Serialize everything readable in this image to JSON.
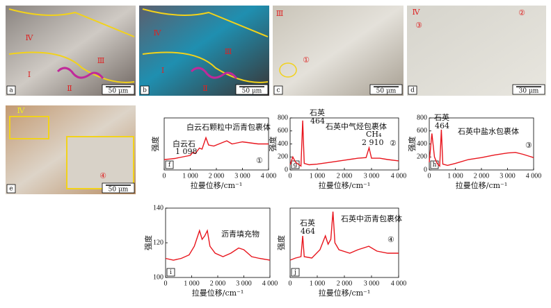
{
  "photos": [
    {
      "label": "a",
      "scale": "50 μm",
      "marks": [
        "Ⅳ",
        "Ⅲ",
        "Ⅰ",
        "Ⅱ"
      ]
    },
    {
      "label": "b",
      "scale": "50 μm",
      "marks": [
        "Ⅳ",
        "Ⅲ",
        "Ⅰ",
        "Ⅱ"
      ]
    },
    {
      "label": "c",
      "scale": "50 μm",
      "marks": [
        "Ⅲ",
        "①"
      ]
    },
    {
      "label": "d",
      "scale": "30 μm",
      "marks": [
        "Ⅳ",
        "③",
        "②"
      ]
    },
    {
      "label": "e",
      "scale": "50 μm",
      "marks": [
        "Ⅳ",
        "④"
      ]
    }
  ],
  "chart_data": [
    {
      "type": "line",
      "panel": "f",
      "xlabel": "拉曼位移/cm⁻¹",
      "ylabel": "强度",
      "color": "#e8141c",
      "xlim": [
        0,
        4000
      ],
      "xticks": [
        0,
        {
          "value": 1000,
          "label": "1 000"
        },
        {
          "value": 2000,
          "label": "2 000"
        },
        {
          "value": 3000,
          "label": "3 000"
        },
        {
          "value": 4000,
          "label": "4 000"
        }
      ],
      "ylim": [
        0,
        100
      ],
      "x": [
        0,
        200,
        400,
        600,
        800,
        1000,
        1098,
        1200,
        1350,
        1450,
        1600,
        1700,
        1900,
        2100,
        2400,
        2600,
        2800,
        3000,
        3300,
        3600,
        4000
      ],
      "values": [
        20,
        21,
        22,
        24,
        26,
        28,
        34,
        32,
        42,
        40,
        62,
        48,
        46,
        50,
        56,
        50,
        52,
        54,
        52,
        50,
        50
      ],
      "annotations": [
        "白云石颗粒中沥青包裹体",
        "白云石",
        "1 098",
        "①"
      ]
    },
    {
      "type": "line",
      "panel": "g",
      "xlabel": "拉曼位移/cm⁻¹",
      "ylabel": "强度",
      "color": "#e8141c",
      "xlim": [
        0,
        4000
      ],
      "xticks": [
        0,
        {
          "value": 1000,
          "label": "1 000"
        },
        {
          "value": 2000,
          "label": "2 000"
        },
        {
          "value": 3000,
          "label": "3 000"
        },
        {
          "value": 4000,
          "label": "4 000"
        }
      ],
      "ylim": [
        0,
        800
      ],
      "yticks": [
        0,
        200,
        400,
        600,
        800
      ],
      "x": [
        0,
        100,
        200,
        300,
        400,
        464,
        520,
        700,
        1000,
        1500,
        2000,
        2500,
        2800,
        2910,
        3000,
        3300,
        3600,
        4000
      ],
      "values": [
        80,
        200,
        120,
        90,
        60,
        760,
        100,
        80,
        90,
        120,
        150,
        180,
        190,
        340,
        180,
        180,
        160,
        140
      ],
      "annotations": [
        "石英",
        "464",
        "石英中气烃包裹体",
        "CH₄",
        "2 910",
        "②"
      ]
    },
    {
      "type": "line",
      "panel": "h",
      "xlabel": "拉曼位移/cm⁻¹",
      "ylabel": "强度",
      "color": "#e8141c",
      "xlim": [
        0,
        4000
      ],
      "xticks": [
        0,
        {
          "value": 1000,
          "label": "1 000"
        },
        {
          "value": 2000,
          "label": "2 000"
        },
        {
          "value": 3000,
          "label": "3 000"
        },
        {
          "value": 4000,
          "label": "4 000"
        }
      ],
      "ylim": [
        0,
        800
      ],
      "yticks": [
        0,
        200,
        400,
        600,
        800
      ],
      "x": [
        0,
        100,
        200,
        300,
        400,
        464,
        520,
        700,
        1000,
        1500,
        2000,
        2500,
        3000,
        3300,
        3600,
        4000
      ],
      "values": [
        120,
        560,
        200,
        100,
        60,
        620,
        90,
        70,
        100,
        160,
        190,
        230,
        260,
        270,
        240,
        190
      ],
      "annotations": [
        "石英",
        "464",
        "石英中盐水包裹体",
        "③"
      ]
    },
    {
      "type": "line",
      "panel": "i",
      "xlabel": "拉曼位移/cm⁻¹",
      "ylabel": "强度",
      "color": "#e8141c",
      "xlim": [
        0,
        4000
      ],
      "xticks": [
        0,
        {
          "value": 1000,
          "label": "1 000"
        },
        {
          "value": 2000,
          "label": "2 000"
        },
        {
          "value": 3000,
          "label": "3 000"
        },
        {
          "value": 4000,
          "label": "4 000"
        }
      ],
      "ylim": [
        100,
        140
      ],
      "yticks": [
        100,
        120,
        140
      ],
      "x": [
        0,
        300,
        600,
        900,
        1100,
        1300,
        1400,
        1500,
        1600,
        1700,
        1900,
        2200,
        2500,
        2800,
        3000,
        3300,
        3600,
        4000
      ],
      "values": [
        111,
        110,
        111,
        113,
        118,
        127,
        122,
        124,
        127,
        118,
        114,
        112,
        114,
        117,
        116,
        112,
        111,
        110
      ],
      "annotations": [
        "沥青填充物"
      ]
    },
    {
      "type": "line",
      "panel": "j",
      "xlabel": "拉曼位移/cm⁻¹",
      "ylabel": "强度",
      "color": "#e8141c",
      "xlim": [
        0,
        4000
      ],
      "xticks": [
        0,
        {
          "value": 1000,
          "label": "1 000"
        },
        {
          "value": 2000,
          "label": "2 000"
        },
        {
          "value": 3000,
          "label": "3 000"
        },
        {
          "value": 4000,
          "label": "4 000"
        }
      ],
      "ylim": [
        0,
        100
      ],
      "x": [
        0,
        200,
        400,
        464,
        520,
        800,
        1100,
        1300,
        1400,
        1500,
        1580,
        1650,
        1800,
        2200,
        2500,
        2900,
        3200,
        3600,
        4000
      ],
      "values": [
        25,
        28,
        30,
        60,
        30,
        28,
        40,
        60,
        48,
        55,
        95,
        50,
        40,
        35,
        40,
        45,
        38,
        35,
        35
      ],
      "annotations": [
        "石英",
        "464",
        "石英中沥青包裹体",
        "④"
      ]
    }
  ]
}
